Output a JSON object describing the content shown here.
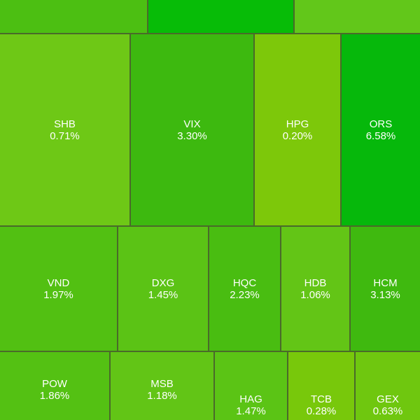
{
  "treemap": {
    "tiles": [
      {
        "symbol": "SHB",
        "change": "0.71%",
        "color": "#6ec816"
      },
      {
        "symbol": "VIX",
        "change": "3.30%",
        "color": "#3db90f"
      },
      {
        "symbol": "HPG",
        "change": "0.20%",
        "color": "#7dc80a"
      },
      {
        "symbol": "ORS",
        "change": "6.58%",
        "color": "#06b80b"
      },
      {
        "symbol": "VND",
        "change": "1.97%",
        "color": "#52c012"
      },
      {
        "symbol": "DXG",
        "change": "1.45%",
        "color": "#5bc315"
      },
      {
        "symbol": "HQC",
        "change": "2.23%",
        "color": "#49bd11"
      },
      {
        "symbol": "HDB",
        "change": "1.06%",
        "color": "#63c516"
      },
      {
        "symbol": "HCM",
        "change": "3.13%",
        "color": "#3fb90f"
      },
      {
        "symbol": "POW",
        "change": "1.86%",
        "color": "#54c113"
      },
      {
        "symbol": "MSB",
        "change": "1.18%",
        "color": "#62c516"
      },
      {
        "symbol": "HAG",
        "change": "1.47%",
        "color": "#5bc415"
      },
      {
        "symbol": "TCB",
        "change": "0.28%",
        "color": "#78c80b"
      },
      {
        "symbol": "GEX",
        "change": "0.63%",
        "color": "#6fc70f"
      }
    ],
    "top_row_colors": [
      "#4cbf12",
      "#07bc07",
      "#62c71a"
    ]
  }
}
